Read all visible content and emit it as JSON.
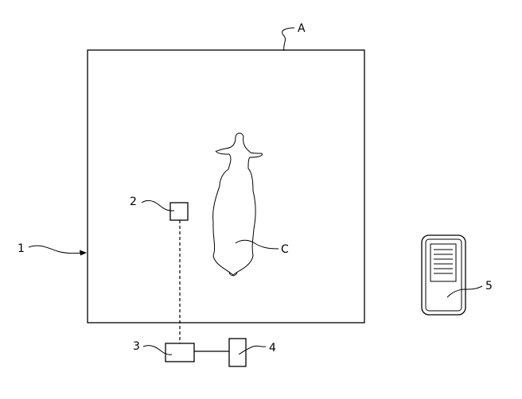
{
  "labels": {
    "enclosure": "A",
    "system": "1",
    "camera": "2",
    "processor": "3",
    "server": "4",
    "terminal": "5",
    "animal": "C"
  }
}
